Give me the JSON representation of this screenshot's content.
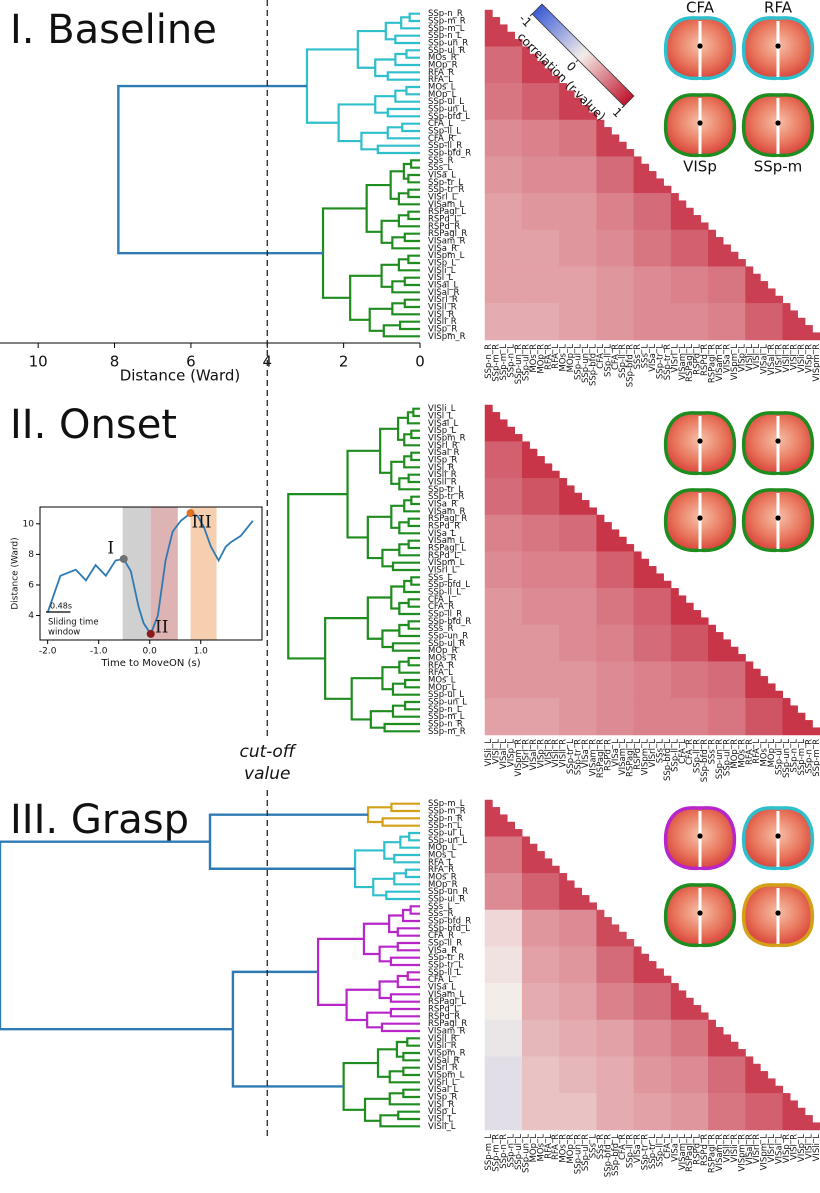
{
  "chart_data": [
    {
      "type": "clustermap",
      "title": "I. Baseline",
      "xlim": [
        11,
        0
      ],
      "xticks": [
        10,
        8,
        6,
        4,
        2,
        0
      ],
      "xlabel": "Distance (Ward)",
      "labels": [
        "SSp-n_R",
        "SSp-m_R",
        "SSp-m_L",
        "SSp-n_L",
        "SSp-un_R",
        "SSp-ul_R",
        "MOs_R",
        "MOp_R",
        "RFA_R",
        "RFA_L",
        "MOs_L",
        "MOp_L",
        "SSp-ul_L",
        "SSp-un_L",
        "SSp-bfd_L",
        "CFA_L",
        "SSp-ll_L",
        "CFA_R",
        "SSp-ll_R",
        "SSp-bfd_R",
        "SSs_R",
        "SSs_L",
        "VISa_L",
        "SSp-tr_L",
        "SSp-tr_R",
        "VISrl_L",
        "VISam_L",
        "RSPagl_L",
        "RSPd_L",
        "RSPd_R",
        "RSPagl_R",
        "VISam_R",
        "VISa_R",
        "VISpm_L",
        "VISp_L",
        "VISli_L",
        "VISl_L",
        "VISal_L",
        "VISal_R",
        "VISrl_R",
        "VISll_R",
        "VISl_R",
        "VISli_R",
        "VISp_R",
        "VISpm_R"
      ],
      "clusters": [
        {
          "color": "#2ebfcc",
          "size": 20,
          "height": 2.96
        },
        {
          "color": "#1e8c1e",
          "size": 25,
          "height": 2.54
        }
      ],
      "joins": [
        {
          "nodes": [
            0,
            1
          ],
          "height": 7.9,
          "color": "#2e7bb4"
        }
      ],
      "matrix": [
        [
          0.8
        ],
        [
          0.6,
          0.8
        ],
        [
          0.55,
          0.65,
          0.8
        ],
        [
          0.45,
          0.5,
          0.55,
          0.8
        ],
        [
          0.4,
          0.45,
          0.45,
          0.6,
          0.8
        ],
        [
          0.35,
          0.4,
          0.4,
          0.5,
          0.6,
          0.8
        ],
        [
          0.35,
          0.35,
          0.4,
          0.45,
          0.55,
          0.65,
          0.8
        ],
        [
          0.35,
          0.35,
          0.35,
          0.4,
          0.45,
          0.5,
          0.55,
          0.8
        ],
        [
          0.3,
          0.3,
          0.35,
          0.4,
          0.45,
          0.45,
          0.5,
          0.65,
          0.8
        ]
      ],
      "colorbar": {
        "label": "correlation (r-value)",
        "lim": [
          -1,
          1
        ],
        "ticks": [
          -1,
          0,
          1
        ],
        "colormap": [
          "#3b5bd6",
          "#f3ede9",
          "#c0142c"
        ]
      },
      "map_labels": [
        "CFA",
        "RFA",
        "VISp",
        "SSp-m"
      ],
      "map_outlines": [
        "#2ebfcc",
        "#2ebfcc",
        "#1e8c1e",
        "#1e8c1e"
      ]
    },
    {
      "type": "clustermap",
      "title": "II. Onset",
      "xlim": [
        11,
        0
      ],
      "labels": [
        "VISli_L",
        "VISl_L",
        "VISal_L",
        "VISp_L",
        "VISpm_R",
        "VISrl_R",
        "VISal_R",
        "VISp_R",
        "VISl_R",
        "VISli_R",
        "VISll_R",
        "SSp-tr_L",
        "SSp-tr_R",
        "VISa_R",
        "VISam_R",
        "RSPagl_R",
        "RSPd_R",
        "VISa_L",
        "VISam_L",
        "RSPagl_L",
        "RSPd_L",
        "VISpm_L",
        "VISrl_L",
        "SSs_L",
        "SSp-bfd_L",
        "SSp-ll_L",
        "CFA_L",
        "CFA_R",
        "SSp-ll_R",
        "SSp-bfd_R",
        "SSs_R",
        "SSp-un_R",
        "SSp-ul_R",
        "MOp_R",
        "MOs_R",
        "RFA_R",
        "RFA_L",
        "MOs_L",
        "MOp_L",
        "SSp-ul_L",
        "SSp-un_L",
        "SSp-n_L",
        "SSp-m_L",
        "SSp-n_R",
        "SSp-m_R"
      ],
      "clusters": [
        {
          "color": "#1e8c1e",
          "size": 45,
          "height": 3.45
        }
      ],
      "joins": [],
      "matrix": [
        [
          0.85
        ],
        [
          0.65,
          0.85
        ],
        [
          0.6,
          0.7,
          0.85
        ],
        [
          0.5,
          0.55,
          0.6,
          0.85
        ],
        [
          0.45,
          0.5,
          0.5,
          0.65,
          0.85
        ],
        [
          0.4,
          0.45,
          0.45,
          0.55,
          0.65,
          0.85
        ],
        [
          0.4,
          0.4,
          0.45,
          0.5,
          0.6,
          0.7,
          0.85
        ],
        [
          0.4,
          0.4,
          0.4,
          0.45,
          0.5,
          0.55,
          0.6,
          0.85
        ],
        [
          0.35,
          0.35,
          0.4,
          0.45,
          0.5,
          0.5,
          0.55,
          0.7,
          0.85
        ]
      ],
      "map_outlines": [
        "#1e8c1e",
        "#1e8c1e",
        "#1e8c1e",
        "#1e8c1e"
      ]
    },
    {
      "type": "clustermap",
      "title": "III. Grasp",
      "xlim": [
        11,
        0
      ],
      "labels": [
        "SSp-m_L",
        "SSp-m_R",
        "SSp-n_R",
        "SSp-n_L",
        "SSp-ul_L",
        "SSp-un_L",
        "MOp_L",
        "MOs_L",
        "RFA_L",
        "RFA_R",
        "MOs_R",
        "MOp_R",
        "SSp-un_R",
        "SSp-ul_R",
        "SSs_L",
        "SSs_R",
        "SSp-bfd_R",
        "SSp-bfd_L",
        "CFA_R",
        "SSp-ll_R",
        "VISa_R",
        "SSp-tr_R",
        "SSp-tr_L",
        "SSp-ll_L",
        "CFA_L",
        "VISa_L",
        "VISam_L",
        "RSPagl_L",
        "RSPd_L",
        "RSPd_R",
        "RSPagl_R",
        "VISam_R",
        "VISll_R",
        "VISli_R",
        "VISpm_R",
        "VISal_R",
        "VISrl_R",
        "VISpm_L",
        "VISrl_L",
        "VISal_L",
        "VISp_R",
        "VISl_R",
        "VISp_L",
        "VISl_L",
        "VISli_L"
      ],
      "clusters": [
        {
          "color": "#d4a017",
          "size": 4,
          "height": 1.36
        },
        {
          "color": "#2ebfcc",
          "size": 10,
          "height": 1.7
        },
        {
          "color": "#b825c9",
          "size": 18,
          "height": 2.67
        },
        {
          "color": "#1e8c1e",
          "size": 13,
          "height": 2.0
        }
      ],
      "joins": [
        {
          "nodes": [
            0,
            1
          ],
          "height": 5.5,
          "color": "#2e7bb4"
        },
        {
          "nodes": [
            2,
            3
          ],
          "height": 4.9,
          "color": "#2e7bb4"
        },
        {
          "nodes": [
            4,
            5
          ],
          "height": 11.0,
          "color": "#2e7bb4"
        }
      ],
      "matrix": [
        [
          0.8
        ],
        [
          0.55,
          0.8
        ],
        [
          0.45,
          0.65,
          0.8
        ],
        [
          0.1,
          0.4,
          0.45,
          0.75
        ],
        [
          0.05,
          0.35,
          0.4,
          0.6,
          0.8
        ],
        [
          0.0,
          0.3,
          0.35,
          0.5,
          0.6,
          0.8
        ],
        [
          -0.05,
          0.25,
          0.3,
          0.35,
          0.45,
          0.55,
          0.8
        ],
        [
          -0.1,
          0.2,
          0.25,
          0.3,
          0.4,
          0.45,
          0.6,
          0.8
        ],
        [
          -0.1,
          0.2,
          0.2,
          0.3,
          0.35,
          0.4,
          0.55,
          0.65,
          0.8
        ]
      ],
      "map_outlines": [
        "#b825c9",
        "#2ebfcc",
        "#1e8c1e",
        "#d4a017"
      ]
    },
    {
      "type": "line",
      "color": "#2e7bb4",
      "xlabel": "Time to MoveON (s)",
      "ylabel": "Distance (Ward)",
      "xlim": [
        -2.15,
        2.2
      ],
      "ylim": [
        2.4,
        11.1
      ],
      "xticks": [
        {
          "value": -2,
          "label": "-2.0"
        },
        {
          "value": -1,
          "label": "-1.0"
        },
        {
          "value": 0,
          "label": "0.0"
        },
        {
          "value": 1,
          "label": "1.0"
        }
      ],
      "yticks": [
        4,
        6,
        8,
        10
      ],
      "x": [
        -2.0,
        -1.75,
        -1.45,
        -1.25,
        -1.06,
        -0.86,
        -0.67,
        -0.51,
        -0.37,
        -0.22,
        -0.12,
        0.02,
        0.16,
        0.31,
        0.45,
        0.61,
        0.8,
        0.94,
        1.06,
        1.2,
        1.35,
        1.49,
        1.59,
        1.78,
        2.02
      ],
      "values": [
        4.2,
        6.6,
        7.0,
        6.3,
        7.3,
        6.6,
        7.6,
        7.7,
        6.9,
        4.6,
        3.5,
        2.8,
        4.0,
        7.6,
        9.5,
        10.2,
        10.7,
        10.5,
        9.8,
        8.5,
        7.6,
        8.5,
        8.8,
        9.2,
        10.2
      ],
      "windows": [
        {
          "from": -0.53,
          "to": 0.02,
          "color": "#c4c4c4"
        },
        {
          "from": 0.02,
          "to": 0.55,
          "color": "#d4a0a0"
        },
        {
          "from": 0.8,
          "to": 1.31,
          "color": "#f2c39c"
        }
      ],
      "points": [
        {
          "label": "I",
          "x": -0.51,
          "y": 7.7,
          "color": "#707070"
        },
        {
          "label": "II",
          "x": 0.02,
          "y": 2.8,
          "color": "#8b1a1a"
        },
        {
          "label": "III",
          "x": 0.8,
          "y": 10.7,
          "color": "#e07020"
        }
      ],
      "scale_bar": {
        "length": 0.48,
        "label": "0.48s"
      },
      "note": [
        "Sliding time",
        "window"
      ]
    }
  ],
  "cutoff": {
    "value": 4,
    "label": [
      "cut-off",
      "value"
    ]
  }
}
